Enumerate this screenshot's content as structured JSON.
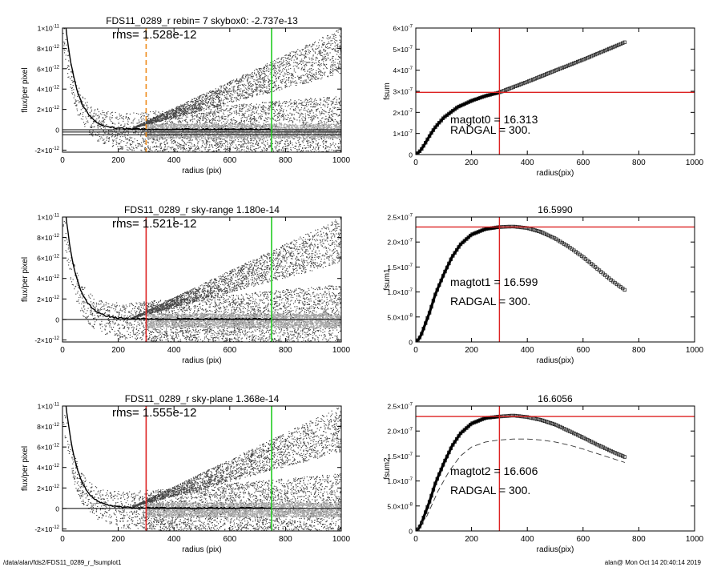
{
  "footer": {
    "path": "/data/alan/fds2/FDS11_0289_r_fsumplot1",
    "stamp": "alan@  Mon Oct 14 20:40:14 2019"
  },
  "chart_data": [
    {
      "id": "p1",
      "type": "scatter",
      "title": "FDS11_0289_r rebin= 7    skybox0: -2.737e-13",
      "xlabel": "radius (pix)",
      "ylabel": "flux/per pixel",
      "xlim": [
        0,
        1000
      ],
      "ylim": [
        -2.2e-12,
        1e-11
      ],
      "xticks": [
        "0",
        "200",
        "400",
        "600",
        "800",
        "1000"
      ],
      "yticks": [
        {
          "v": 1e-11,
          "m": "1×10",
          "e": "-11"
        },
        {
          "v": 8e-12,
          "m": "8×10",
          "e": "-12"
        },
        {
          "v": 6e-12,
          "m": "6×10",
          "e": "-12"
        },
        {
          "v": 4e-12,
          "m": "4×10",
          "e": "-12"
        },
        {
          "v": 2e-12,
          "m": "2×10",
          "e": "-12"
        },
        {
          "v": 0,
          "m": "0",
          "e": ""
        },
        {
          "v": -2e-12,
          "m": "-2×10",
          "e": "-12"
        }
      ],
      "annotation": "rms= 1.528e-12",
      "vlines": [
        {
          "x": 300,
          "color": "#ee8a1a",
          "dash": true
        },
        {
          "x": 750,
          "color": "#22cc22",
          "dash": false
        }
      ],
      "hlines": [
        {
          "y": 0,
          "color": "#000000"
        },
        {
          "y": -2.2e-13,
          "color": "#000000"
        },
        {
          "y": -4.9e-13,
          "color": "#000000"
        }
      ],
      "grid": false,
      "legend": "none"
    },
    {
      "id": "p2",
      "type": "line",
      "title": "",
      "xlabel": "radius(pix)",
      "ylabel": "fsum",
      "xlim": [
        0,
        1000
      ],
      "ylim": [
        0,
        6e-07
      ],
      "xticks": [
        "0",
        "200",
        "400",
        "600",
        "800",
        "1000"
      ],
      "yticks": [
        {
          "v": 6e-07,
          "m": "6×10",
          "e": "-7"
        },
        {
          "v": 5e-07,
          "m": "5×10",
          "e": "-7"
        },
        {
          "v": 4e-07,
          "m": "4×10",
          "e": "-7"
        },
        {
          "v": 3e-07,
          "m": "3×10",
          "e": "-7"
        },
        {
          "v": 2e-07,
          "m": "2×10",
          "e": "-7"
        },
        {
          "v": 1e-07,
          "m": "1×10",
          "e": "-7"
        },
        {
          "v": 0,
          "m": "0",
          "e": ""
        }
      ],
      "annotations": [
        "magtot0 =  16.313",
        "RADGAL =    300."
      ],
      "vline": {
        "x": 300,
        "color": "#dd2222"
      },
      "hline": {
        "y": 2.95e-07,
        "color": "#dd2222"
      },
      "curve": [
        [
          0,
          0
        ],
        [
          10,
          1e-08
        ],
        [
          20,
          2.5e-08
        ],
        [
          30,
          4.5e-08
        ],
        [
          50,
          9e-08
        ],
        [
          70,
          1.3e-07
        ],
        [
          100,
          1.75e-07
        ],
        [
          150,
          2.25e-07
        ],
        [
          200,
          2.55e-07
        ],
        [
          250,
          2.78e-07
        ],
        [
          300,
          2.95e-07
        ],
        [
          400,
          3.45e-07
        ],
        [
          500,
          3.98e-07
        ],
        [
          600,
          4.5e-07
        ],
        [
          700,
          5.05e-07
        ],
        [
          750,
          5.33e-07
        ]
      ],
      "grid": false,
      "legend": "none"
    },
    {
      "id": "p3",
      "type": "scatter",
      "title": "FDS11_0289_r sky-range  1.180e-14",
      "xlabel": "radius (pix)",
      "ylabel": "flux/per pixel",
      "xlim": [
        0,
        1000
      ],
      "ylim": [
        -2.2e-12,
        1e-11
      ],
      "xticks": [
        "0",
        "200",
        "400",
        "600",
        "800",
        "1000"
      ],
      "yticks": [
        {
          "v": 1e-11,
          "m": "1×10",
          "e": "-11"
        },
        {
          "v": 8e-12,
          "m": "8×10",
          "e": "-12"
        },
        {
          "v": 6e-12,
          "m": "6×10",
          "e": "-12"
        },
        {
          "v": 4e-12,
          "m": "4×10",
          "e": "-12"
        },
        {
          "v": 2e-12,
          "m": "2×10",
          "e": "-12"
        },
        {
          "v": 0,
          "m": "0",
          "e": ""
        },
        {
          "v": -2e-12,
          "m": "-2×10",
          "e": "-12"
        }
      ],
      "annotation": "rms= 1.521e-12",
      "vlines": [
        {
          "x": 300,
          "color": "#dd2222",
          "dash": false
        },
        {
          "x": 750,
          "color": "#22cc22",
          "dash": false
        }
      ],
      "hlines": [
        {
          "y": 0,
          "color": "#000000"
        }
      ],
      "grid": false,
      "legend": "none"
    },
    {
      "id": "p4",
      "type": "line",
      "title": "16.5990",
      "xlabel": "radius(pix)",
      "ylabel": "fsum1",
      "xlim": [
        0,
        1000
      ],
      "ylim": [
        0,
        2.5e-07
      ],
      "xticks": [
        "0",
        "200",
        "400",
        "600",
        "800",
        "1000"
      ],
      "yticks": [
        {
          "v": 2.5e-07,
          "m": "2.5×10",
          "e": "-7"
        },
        {
          "v": 2e-07,
          "m": "2.0×10",
          "e": "-7"
        },
        {
          "v": 1.5e-07,
          "m": "1.5×10",
          "e": "-7"
        },
        {
          "v": 1e-07,
          "m": "1.0×10",
          "e": "-7"
        },
        {
          "v": 5e-08,
          "m": "5.0×10",
          "e": "-8"
        },
        {
          "v": 0,
          "m": "0",
          "e": ""
        }
      ],
      "annotations": [
        "magtot1 =  16.599",
        "RADGAL =    300."
      ],
      "vline": {
        "x": 300,
        "color": "#dd2222"
      },
      "hline": {
        "y": 2.3e-07,
        "color": "#dd2222"
      },
      "curve": [
        [
          0,
          0
        ],
        [
          10,
          5e-09
        ],
        [
          20,
          1.5e-08
        ],
        [
          30,
          3e-08
        ],
        [
          50,
          6e-08
        ],
        [
          70,
          9.5e-08
        ],
        [
          100,
          1.35e-07
        ],
        [
          130,
          1.7e-07
        ],
        [
          160,
          1.95e-07
        ],
        [
          200,
          2.15e-07
        ],
        [
          250,
          2.26e-07
        ],
        [
          300,
          2.3e-07
        ],
        [
          350,
          2.31e-07
        ],
        [
          400,
          2.28e-07
        ],
        [
          450,
          2.2e-07
        ],
        [
          500,
          2.07e-07
        ],
        [
          550,
          1.9e-07
        ],
        [
          600,
          1.7e-07
        ],
        [
          650,
          1.47e-07
        ],
        [
          700,
          1.24e-07
        ],
        [
          750,
          1.04e-07
        ]
      ],
      "grid": false,
      "legend": "none"
    },
    {
      "id": "p5",
      "type": "scatter",
      "title": "FDS11_0289_r sky-plane  1.368e-14",
      "xlabel": "radius (pix)",
      "ylabel": "flux/per pixel",
      "xlim": [
        0,
        1000
      ],
      "ylim": [
        -2.2e-12,
        1e-11
      ],
      "xticks": [
        "0",
        "200",
        "400",
        "600",
        "800",
        "1000"
      ],
      "yticks": [
        {
          "v": 1e-11,
          "m": "1×10",
          "e": "-11"
        },
        {
          "v": 8e-12,
          "m": "8×10",
          "e": "-12"
        },
        {
          "v": 6e-12,
          "m": "6×10",
          "e": "-12"
        },
        {
          "v": 4e-12,
          "m": "4×10",
          "e": "-12"
        },
        {
          "v": 2e-12,
          "m": "2×10",
          "e": "-12"
        },
        {
          "v": 0,
          "m": "0",
          "e": ""
        },
        {
          "v": -2e-12,
          "m": "-2×10",
          "e": "-12"
        }
      ],
      "annotation": "rms= 1.555e-12",
      "vlines": [
        {
          "x": 300,
          "color": "#dd2222",
          "dash": false
        },
        {
          "x": 750,
          "color": "#22cc22",
          "dash": false
        }
      ],
      "hlines": [
        {
          "y": 0,
          "color": "#000000"
        }
      ],
      "grid": false,
      "legend": "none"
    },
    {
      "id": "p6",
      "type": "line",
      "title": "16.6056",
      "xlabel": "radius(pix)",
      "ylabel": "fsum2",
      "xlim": [
        0,
        1000
      ],
      "ylim": [
        0,
        2.5e-07
      ],
      "xticks": [
        "0",
        "200",
        "400",
        "600",
        "800",
        "1000"
      ],
      "yticks": [
        {
          "v": 2.5e-07,
          "m": "2.5×10",
          "e": "-7"
        },
        {
          "v": 2e-07,
          "m": "2.0×10",
          "e": "-7"
        },
        {
          "v": 1.5e-07,
          "m": "1.5×10",
          "e": "-7"
        },
        {
          "v": 1e-07,
          "m": "1.0×10",
          "e": "-7"
        },
        {
          "v": 5e-08,
          "m": "5.0×10",
          "e": "-8"
        },
        {
          "v": 0,
          "m": "0",
          "e": ""
        }
      ],
      "annotations": [
        "magtot2 =  16.606",
        "RADGAL =    300."
      ],
      "vline": {
        "x": 300,
        "color": "#dd2222"
      },
      "hline": {
        "y": 2.29e-07,
        "color": "#dd2222"
      },
      "curve": [
        [
          0,
          0
        ],
        [
          10,
          5e-09
        ],
        [
          20,
          1.5e-08
        ],
        [
          30,
          3e-08
        ],
        [
          50,
          6e-08
        ],
        [
          70,
          9.5e-08
        ],
        [
          100,
          1.35e-07
        ],
        [
          130,
          1.7e-07
        ],
        [
          160,
          1.95e-07
        ],
        [
          200,
          2.15e-07
        ],
        [
          250,
          2.26e-07
        ],
        [
          300,
          2.29e-07
        ],
        [
          350,
          2.31e-07
        ],
        [
          400,
          2.28e-07
        ],
        [
          450,
          2.22e-07
        ],
        [
          500,
          2.13e-07
        ],
        [
          550,
          2e-07
        ],
        [
          600,
          1.87e-07
        ],
        [
          650,
          1.73e-07
        ],
        [
          700,
          1.6e-07
        ],
        [
          750,
          1.48e-07
        ]
      ],
      "dashed": [
        [
          0,
          0
        ],
        [
          40,
          3e-08
        ],
        [
          80,
          8e-08
        ],
        [
          120,
          1.2e-07
        ],
        [
          160,
          1.5e-07
        ],
        [
          200,
          1.68e-07
        ],
        [
          250,
          1.78e-07
        ],
        [
          300,
          1.82e-07
        ],
        [
          350,
          1.84e-07
        ],
        [
          400,
          1.84e-07
        ],
        [
          450,
          1.82e-07
        ],
        [
          500,
          1.78e-07
        ],
        [
          550,
          1.72e-07
        ],
        [
          600,
          1.64e-07
        ],
        [
          650,
          1.55e-07
        ],
        [
          700,
          1.46e-07
        ],
        [
          750,
          1.37e-07
        ]
      ],
      "grid": false,
      "legend": "none"
    }
  ]
}
